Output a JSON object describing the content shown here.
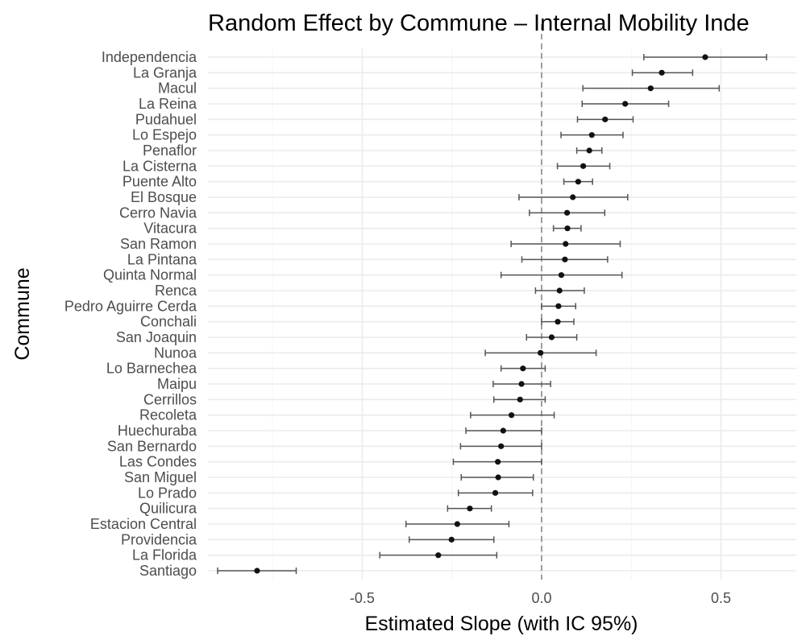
{
  "chart_data": {
    "type": "scatter",
    "title": "Random Effect by Commune – Internal Mobility Inde",
    "xlabel": "Estimated Slope (with IC 95%)",
    "ylabel": "Commune",
    "xlim": [
      -0.93,
      0.71
    ],
    "xticks": [
      -0.5,
      0.0,
      0.5
    ],
    "xtick_labels": [
      "-0.5",
      "0.0",
      "0.5"
    ],
    "grid": true,
    "reference_line": {
      "x": 0.0,
      "style": "dashed"
    },
    "series": [
      {
        "points": [
          {
            "commune": "Independencia",
            "estimate": 0.456,
            "lower": 0.285,
            "upper": 0.627
          },
          {
            "commune": "La Granja",
            "estimate": 0.335,
            "lower": 0.253,
            "upper": 0.421
          },
          {
            "commune": "Macul",
            "estimate": 0.304,
            "lower": 0.115,
            "upper": 0.495
          },
          {
            "commune": "La Reina",
            "estimate": 0.233,
            "lower": 0.113,
            "upper": 0.354
          },
          {
            "commune": "Pudahuel",
            "estimate": 0.177,
            "lower": 0.1,
            "upper": 0.255
          },
          {
            "commune": "Lo Espejo",
            "estimate": 0.14,
            "lower": 0.054,
            "upper": 0.227
          },
          {
            "commune": "Penaflor",
            "estimate": 0.133,
            "lower": 0.098,
            "upper": 0.168
          },
          {
            "commune": "La Cisterna",
            "estimate": 0.116,
            "lower": 0.044,
            "upper": 0.19
          },
          {
            "commune": "Puente Alto",
            "estimate": 0.102,
            "lower": 0.062,
            "upper": 0.142
          },
          {
            "commune": "El Bosque",
            "estimate": 0.087,
            "lower": -0.063,
            "upper": 0.24
          },
          {
            "commune": "Cerro Navia",
            "estimate": 0.071,
            "lower": -0.034,
            "upper": 0.176
          },
          {
            "commune": "Vitacura",
            "estimate": 0.072,
            "lower": 0.033,
            "upper": 0.11
          },
          {
            "commune": "San Ramon",
            "estimate": 0.067,
            "lower": -0.085,
            "upper": 0.219
          },
          {
            "commune": "La Pintana",
            "estimate": 0.065,
            "lower": -0.055,
            "upper": 0.184
          },
          {
            "commune": "Quinta Normal",
            "estimate": 0.055,
            "lower": -0.113,
            "upper": 0.224
          },
          {
            "commune": "Renca",
            "estimate": 0.05,
            "lower": -0.017,
            "upper": 0.119
          },
          {
            "commune": "Pedro Aguirre Cerda",
            "estimate": 0.047,
            "lower": 0.0,
            "upper": 0.095
          },
          {
            "commune": "Conchali",
            "estimate": 0.045,
            "lower": 0.0,
            "upper": 0.09
          },
          {
            "commune": "San Joaquin",
            "estimate": 0.028,
            "lower": -0.042,
            "upper": 0.098
          },
          {
            "commune": "Nunoa",
            "estimate": -0.003,
            "lower": -0.157,
            "upper": 0.152
          },
          {
            "commune": "Lo Barnechea",
            "estimate": -0.052,
            "lower": -0.113,
            "upper": 0.01
          },
          {
            "commune": "Maipu",
            "estimate": -0.056,
            "lower": -0.135,
            "upper": 0.025
          },
          {
            "commune": "Cerrillos",
            "estimate": -0.06,
            "lower": -0.133,
            "upper": 0.01
          },
          {
            "commune": "Recoleta",
            "estimate": -0.084,
            "lower": -0.198,
            "upper": 0.035
          },
          {
            "commune": "Huechuraba",
            "estimate": -0.107,
            "lower": -0.211,
            "upper": 0.0
          },
          {
            "commune": "San Bernardo",
            "estimate": -0.113,
            "lower": -0.226,
            "upper": 0.0
          },
          {
            "commune": "Las Condes",
            "estimate": -0.122,
            "lower": -0.246,
            "upper": 0.0
          },
          {
            "commune": "San Miguel",
            "estimate": -0.121,
            "lower": -0.224,
            "upper": -0.023
          },
          {
            "commune": "Lo Prado",
            "estimate": -0.129,
            "lower": -0.232,
            "upper": -0.025
          },
          {
            "commune": "Quilicura",
            "estimate": -0.2,
            "lower": -0.262,
            "upper": -0.14
          },
          {
            "commune": "Estacion Central",
            "estimate": -0.235,
            "lower": -0.378,
            "upper": -0.091
          },
          {
            "commune": "Providencia",
            "estimate": -0.251,
            "lower": -0.369,
            "upper": -0.133
          },
          {
            "commune": "La Florida",
            "estimate": -0.288,
            "lower": -0.451,
            "upper": -0.125
          },
          {
            "commune": "Santiago",
            "estimate": -0.793,
            "lower": -0.903,
            "upper": -0.684
          }
        ]
      }
    ]
  }
}
